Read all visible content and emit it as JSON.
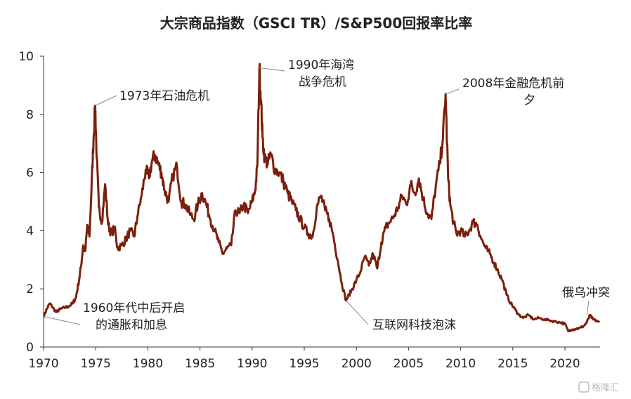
{
  "chart_data": {
    "type": "line",
    "title": "大宗商品指数（GSCI TR）/S&P500回报率比率",
    "xlabel": "",
    "ylabel": "",
    "xlim": [
      1970,
      2023.3
    ],
    "ylim": [
      0,
      10
    ],
    "xticks": [
      "1970",
      "1975",
      "1980",
      "1985",
      "1990",
      "1995",
      "2000",
      "2005",
      "2010",
      "2015",
      "2020"
    ],
    "yticks": [
      "0",
      "2",
      "4",
      "6",
      "8",
      "10"
    ],
    "grid": false,
    "legend": "none",
    "color": "#7a1f0c",
    "series": [
      {
        "x": [
          1970,
          1970.3,
          1970.6,
          1970.9,
          1971.2,
          1971.6,
          1972,
          1972.4,
          1972.8,
          1973.1,
          1973.4,
          1973.6,
          1973.8,
          1974.0,
          1974.2,
          1974.4,
          1974.6,
          1974.8,
          1974.95,
          1975.1,
          1975.3,
          1975.6,
          1975.9,
          1976.2,
          1976.5,
          1976.8,
          1977.1,
          1977.5,
          1977.9,
          1978.3,
          1978.7,
          1979.0,
          1979.4,
          1979.8,
          1980.1,
          1980.4,
          1980.7,
          1981.0,
          1981.3,
          1981.6,
          1982.0,
          1982.4,
          1982.8,
          1983.2,
          1983.6,
          1984.0,
          1984.4,
          1984.8,
          1985.2,
          1985.6,
          1986.0,
          1986.4,
          1986.8,
          1987.2,
          1987.6,
          1988.0,
          1988.4,
          1988.8,
          1989.2,
          1989.6,
          1990.0,
          1990.3,
          1990.5,
          1990.7,
          1990.85,
          1991.0,
          1991.2,
          1991.5,
          1991.8,
          1992.2,
          1992.6,
          1993.0,
          1993.4,
          1993.8,
          1994.2,
          1994.6,
          1995.0,
          1995.4,
          1995.8,
          1996.2,
          1996.6,
          1997.0,
          1997.4,
          1997.8,
          1998.2,
          1998.6,
          1999.0,
          1999.3,
          1999.6,
          2000.0,
          2000.4,
          2000.8,
          2001.2,
          2001.6,
          2002.0,
          2002.4,
          2002.8,
          2003.2,
          2003.6,
          2004.0,
          2004.4,
          2004.8,
          2005.2,
          2005.6,
          2006.0,
          2006.4,
          2006.8,
          2007.2,
          2007.6,
          2008.0,
          2008.3,
          2008.55,
          2008.8,
          2009.0,
          2009.3,
          2009.6,
          2010.0,
          2010.4,
          2010.8,
          2011.2,
          2011.6,
          2012.0,
          2012.4,
          2012.8,
          2013.2,
          2013.6,
          2014.0,
          2014.4,
          2014.8,
          2015.2,
          2015.6,
          2016.0,
          2016.5,
          2017.0,
          2017.5,
          2018.0,
          2018.5,
          2019.0,
          2019.5,
          2020.0,
          2020.3,
          2020.6,
          2021.0,
          2021.4,
          2021.8,
          2022.1,
          2022.4,
          2022.7,
          2023.0,
          2023.3
        ],
        "y": [
          1.05,
          1.3,
          1.5,
          1.35,
          1.2,
          1.3,
          1.35,
          1.4,
          1.5,
          1.7,
          2.3,
          2.8,
          3.5,
          3.3,
          4.2,
          3.8,
          5.5,
          7.2,
          8.3,
          6.5,
          4.8,
          4.3,
          5.6,
          4.2,
          3.9,
          4.1,
          3.4,
          3.5,
          3.7,
          4.0,
          3.8,
          4.5,
          5.2,
          6.1,
          5.8,
          6.4,
          6.6,
          6.3,
          6.0,
          5.4,
          5.0,
          5.9,
          6.2,
          5.0,
          4.9,
          4.6,
          4.4,
          4.9,
          5.3,
          4.9,
          4.4,
          4.0,
          3.6,
          3.2,
          3.4,
          3.5,
          4.7,
          4.6,
          4.9,
          4.6,
          5.0,
          5.4,
          6.2,
          9.6,
          8.5,
          7.2,
          6.5,
          6.3,
          6.6,
          6.1,
          6.0,
          5.7,
          5.3,
          5.0,
          4.7,
          4.4,
          4.1,
          3.9,
          3.8,
          4.8,
          5.2,
          4.7,
          4.4,
          3.8,
          3.0,
          2.2,
          1.6,
          1.8,
          2.0,
          2.3,
          2.6,
          3.1,
          2.8,
          3.2,
          2.7,
          3.6,
          4.1,
          4.3,
          4.5,
          4.8,
          5.2,
          4.9,
          5.6,
          5.3,
          5.8,
          5.1,
          4.6,
          4.4,
          5.5,
          6.3,
          7.2,
          8.7,
          5.8,
          4.9,
          4.3,
          3.9,
          4.0,
          3.8,
          4.0,
          4.3,
          4.2,
          3.7,
          3.4,
          3.2,
          2.9,
          2.6,
          2.3,
          1.8,
          1.5,
          1.3,
          1.1,
          1.0,
          1.1,
          0.95,
          1.0,
          0.95,
          0.92,
          0.88,
          0.85,
          0.8,
          0.55,
          0.6,
          0.62,
          0.65,
          0.72,
          0.85,
          1.1,
          0.95,
          0.9,
          0.85
        ]
      }
    ],
    "annotations": [
      {
        "lines": [
          "1973年石油危机"
        ],
        "x": 1974.95,
        "y": 8.3
      },
      {
        "lines": [
          "1990年海湾",
          "战争危机"
        ],
        "x": 1990.7,
        "y": 9.6
      },
      {
        "lines": [
          "2008年金融危机前",
          "夕"
        ],
        "x": 2008.55,
        "y": 8.7
      },
      {
        "lines": [
          "1960年代中后开启",
          "的通胀和加息"
        ],
        "x": 1970.0,
        "y": 1.05
      },
      {
        "lines": [
          "互联网科技泡沫"
        ],
        "x": 1999.0,
        "y": 1.6
      },
      {
        "lines": [
          "俄乌冲突"
        ],
        "x": 2022.1,
        "y": 1.1
      }
    ]
  },
  "watermark": "格隆汇"
}
